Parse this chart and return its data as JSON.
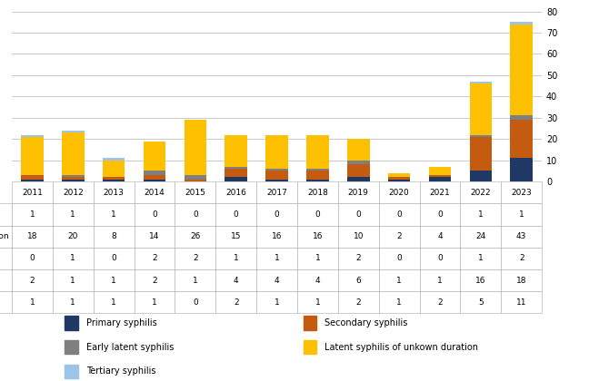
{
  "years": [
    "2011",
    "2012",
    "2013",
    "2014",
    "2015",
    "2016",
    "2017",
    "2018",
    "2019",
    "2020",
    "2021",
    "2022",
    "2023"
  ],
  "series": {
    "Primary syphilis": [
      1,
      1,
      1,
      1,
      0,
      2,
      1,
      1,
      2,
      1,
      2,
      5,
      11
    ],
    "Secondary syphilis": [
      2,
      1,
      1,
      2,
      1,
      4,
      4,
      4,
      6,
      1,
      1,
      16,
      18
    ],
    "Early latent syphilis": [
      0,
      1,
      0,
      2,
      2,
      1,
      1,
      1,
      2,
      0,
      0,
      1,
      2
    ],
    "Latent syphilis of unkown duration": [
      18,
      20,
      8,
      14,
      26,
      15,
      16,
      16,
      10,
      2,
      4,
      24,
      43
    ],
    "Tertiary syphilis": [
      1,
      1,
      1,
      0,
      0,
      0,
      0,
      0,
      0,
      0,
      0,
      1,
      1
    ]
  },
  "colors": {
    "Primary syphilis": "#203864",
    "Secondary syphilis": "#C55A11",
    "Early latent syphilis": "#7F7F7F",
    "Latent syphilis of unkown duration": "#FFC000",
    "Tertiary syphilis": "#9DC3E6"
  },
  "ylim": [
    0,
    80
  ],
  "yticks": [
    0,
    10,
    20,
    30,
    40,
    50,
    60,
    70,
    80
  ],
  "stack_order": [
    "Primary syphilis",
    "Secondary syphilis",
    "Early latent syphilis",
    "Latent syphilis of unkown duration",
    "Tertiary syphilis"
  ],
  "table_order": [
    "Tertiary syphilis",
    "Latent syphilis of unkown duration",
    "Early latent syphilis",
    "Secondary syphilis",
    "Primary syphilis"
  ],
  "legend_col1": [
    "Primary syphilis",
    "Early latent syphilis",
    "Tertiary syphilis"
  ],
  "legend_col2": [
    "Secondary syphilis",
    "Latent syphilis of unkown duration"
  ],
  "bar_width": 0.55
}
